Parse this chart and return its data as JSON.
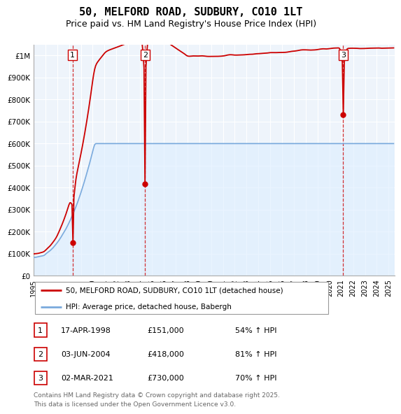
{
  "title": "50, MELFORD ROAD, SUDBURY, CO10 1LT",
  "subtitle": "Price paid vs. HM Land Registry's House Price Index (HPI)",
  "legend_line1": "50, MELFORD ROAD, SUDBURY, CO10 1LT (detached house)",
  "legend_line2": "HPI: Average price, detached house, Babergh",
  "sale_color": "#cc0000",
  "hpi_color": "#7aaadd",
  "hpi_fill_color": "#ddeeff",
  "grid_color": "#cccccc",
  "vline_color": "#cc0000",
  "bg_color": "#eef4fb",
  "ylim": [
    0,
    1050000
  ],
  "yticks": [
    0,
    100000,
    200000,
    300000,
    400000,
    500000,
    600000,
    700000,
    800000,
    900000,
    1000000
  ],
  "ytick_labels": [
    "£0",
    "£100K",
    "£200K",
    "£300K",
    "£400K",
    "£500K",
    "£600K",
    "£700K",
    "£800K",
    "£900K",
    "£1M"
  ],
  "sale_dates_num": [
    1998.296,
    2004.421,
    2021.163
  ],
  "sale_prices": [
    151000,
    418000,
    730000
  ],
  "sale_labels": [
    "1",
    "2",
    "3"
  ],
  "table_rows": [
    [
      "1",
      "17-APR-1998",
      "£151,000",
      "54% ↑ HPI"
    ],
    [
      "2",
      "03-JUN-2004",
      "£418,000",
      "81% ↑ HPI"
    ],
    [
      "3",
      "02-MAR-2021",
      "£730,000",
      "70% ↑ HPI"
    ]
  ],
  "footnote": "Contains HM Land Registry data © Crown copyright and database right 2025.\nThis data is licensed under the Open Government Licence v3.0.",
  "xstart": 1995.0,
  "xend": 2025.5
}
